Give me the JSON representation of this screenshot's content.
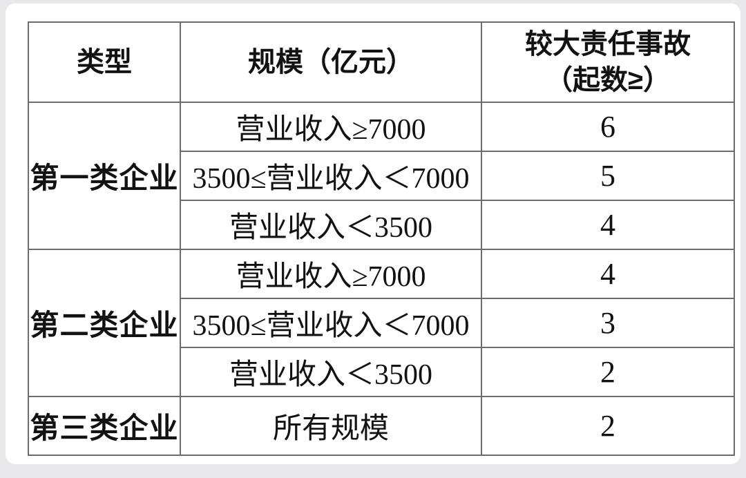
{
  "table": {
    "headers": {
      "type": "类型",
      "scale": "规模（亿元）",
      "accidents_line1": "较大责任事故",
      "accidents_line2": "（起数≥）"
    },
    "groups": [
      {
        "type": "第一类企业",
        "rows": [
          {
            "scale": "营业收入≥7000",
            "accidents": "6"
          },
          {
            "scale": "3500≤营业收入＜7000",
            "accidents": "5"
          },
          {
            "scale": "营业收入＜3500",
            "accidents": "4"
          }
        ]
      },
      {
        "type": "第二类企业",
        "rows": [
          {
            "scale": "营业收入≥7000",
            "accidents": "4"
          },
          {
            "scale": "3500≤营业收入＜7000",
            "accidents": "3"
          },
          {
            "scale": "营业收入＜3500",
            "accidents": "2"
          }
        ]
      },
      {
        "type": "第三类企业",
        "rows": [
          {
            "scale": "所有规模",
            "accidents": "2"
          }
        ]
      }
    ]
  },
  "colors": {
    "page_background": "#e9e9eb",
    "card_background": "#ffffff",
    "grid_line": "#6c6c6c",
    "text": "#121212"
  }
}
